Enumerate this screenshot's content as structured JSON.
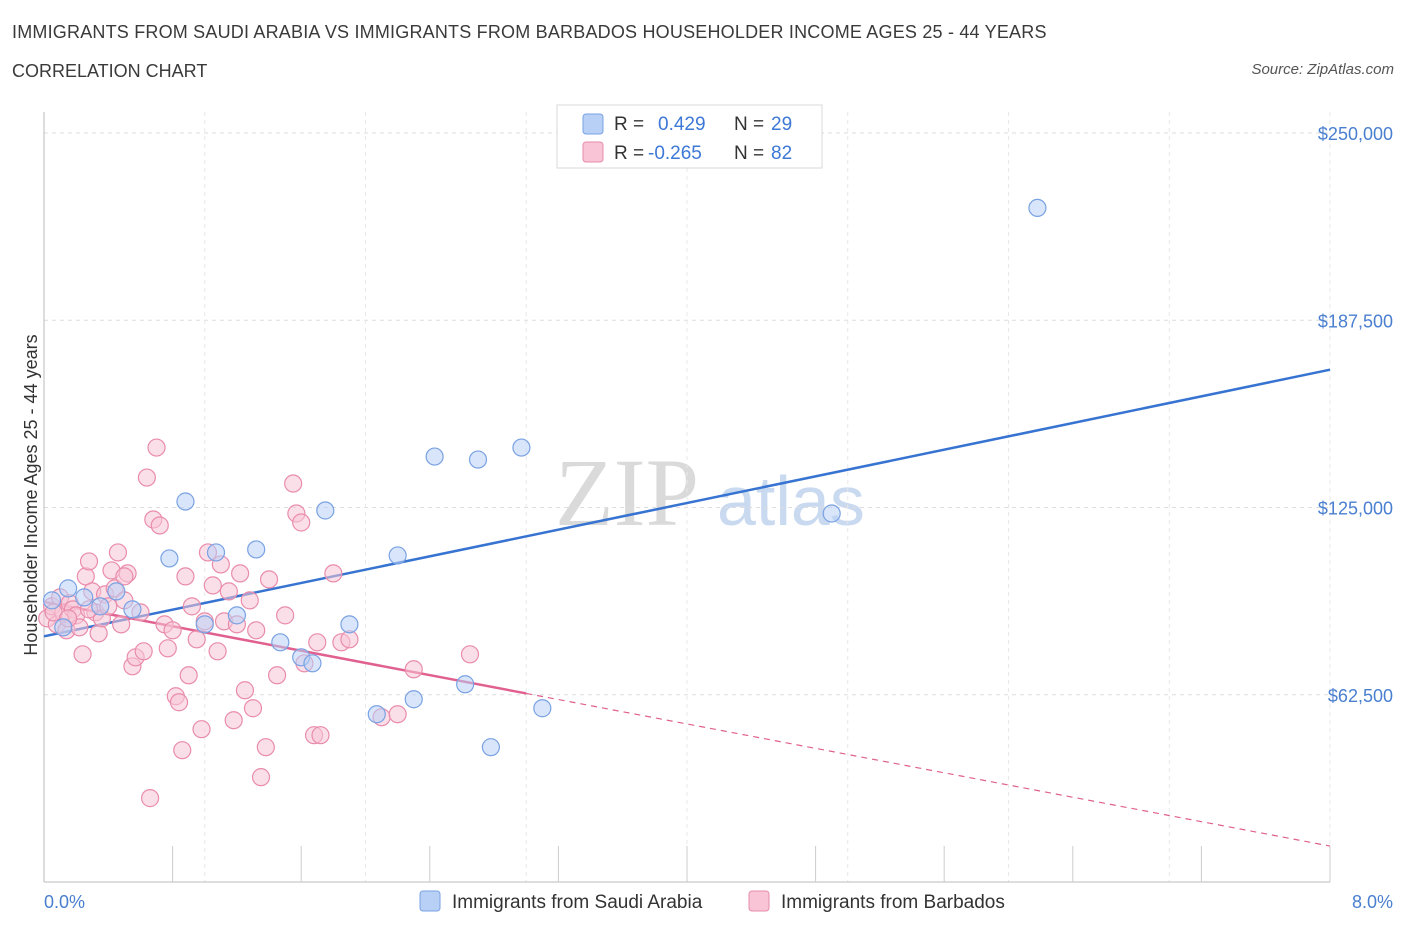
{
  "header": {
    "title": "IMMIGRANTS FROM SAUDI ARABIA VS IMMIGRANTS FROM BARBADOS HOUSEHOLDER INCOME AGES 25 - 44 YEARS",
    "subtitle": "CORRELATION CHART",
    "source": "Source: ZipAtlas.com"
  },
  "watermark": {
    "zip": "ZIP",
    "atlas": "atlas"
  },
  "legend": {
    "r_label": "R =",
    "n_label": "N =",
    "series1": {
      "r": "0.429",
      "n": "29"
    },
    "series2": {
      "r": "-0.265",
      "n": "82"
    }
  },
  "chart_data": {
    "type": "scatter",
    "title": "IMMIGRANTS FROM SAUDI ARABIA VS IMMIGRANTS FROM BARBADOS HOUSEHOLDER INCOME AGES 25 - 44 YEARS",
    "xlabel": "",
    "ylabel": "Householder Income Ages 25 - 44 years",
    "xlim": [
      0,
      8
    ],
    "ylim": [
      0,
      250000
    ],
    "x_tick_labels": [
      "0.0%",
      "8.0%"
    ],
    "y_ticks": [
      62500,
      125000,
      187500,
      250000
    ],
    "y_tick_labels": [
      "$62,500",
      "$125,000",
      "$187,500",
      "$250,000"
    ],
    "grid": true,
    "legend_position": "top-center",
    "colors": {
      "series1_fill": "#b8d0f5",
      "series1_stroke": "#7aa2e3",
      "series1_line": "#3773d0",
      "series2_fill": "#f8c4d6",
      "series2_stroke": "#e98cab",
      "series2_line": "#e0608f"
    },
    "series": [
      {
        "name": "Immigrants from Saudi Arabia",
        "r": 0.429,
        "n": 29,
        "trend": {
          "x0": 0.0,
          "y0": 82000,
          "x1": 8.0,
          "y1": 171000,
          "dashed_from": null
        },
        "points": [
          [
            0.05,
            94000
          ],
          [
            0.15,
            98000
          ],
          [
            0.25,
            95000
          ],
          [
            0.35,
            92000
          ],
          [
            0.45,
            97000
          ],
          [
            0.55,
            91000
          ],
          [
            0.78,
            108000
          ],
          [
            0.88,
            127000
          ],
          [
            1.0,
            86000
          ],
          [
            1.07,
            110000
          ],
          [
            1.2,
            89000
          ],
          [
            1.32,
            111000
          ],
          [
            1.47,
            80000
          ],
          [
            1.6,
            75000
          ],
          [
            1.67,
            73000
          ],
          [
            1.75,
            124000
          ],
          [
            1.9,
            86000
          ],
          [
            2.07,
            56000
          ],
          [
            2.2,
            109000
          ],
          [
            2.3,
            61000
          ],
          [
            2.43,
            142000
          ],
          [
            2.62,
            66000
          ],
          [
            2.7,
            141000
          ],
          [
            2.78,
            45000
          ],
          [
            2.97,
            145000
          ],
          [
            3.1,
            58000
          ],
          [
            4.9,
            123000
          ],
          [
            6.18,
            225000
          ],
          [
            0.12,
            85000
          ]
        ]
      },
      {
        "name": "Immigrants from Barbados",
        "r": -0.265,
        "n": 82,
        "trend": {
          "x0": 0.0,
          "y0": 93500,
          "x1": 8.0,
          "y1": 12000,
          "dashed_from": 3.0
        },
        "points": [
          [
            0.02,
            88000
          ],
          [
            0.05,
            92000
          ],
          [
            0.08,
            86000
          ],
          [
            0.1,
            95000
          ],
          [
            0.12,
            90000
          ],
          [
            0.14,
            84000
          ],
          [
            0.16,
            93000
          ],
          [
            0.18,
            91000
          ],
          [
            0.2,
            89000
          ],
          [
            0.22,
            85000
          ],
          [
            0.24,
            76000
          ],
          [
            0.26,
            102000
          ],
          [
            0.28,
            107000
          ],
          [
            0.3,
            97000
          ],
          [
            0.32,
            90000
          ],
          [
            0.34,
            83000
          ],
          [
            0.36,
            88000
          ],
          [
            0.38,
            96000
          ],
          [
            0.4,
            92000
          ],
          [
            0.42,
            104000
          ],
          [
            0.44,
            98000
          ],
          [
            0.46,
            110000
          ],
          [
            0.48,
            86000
          ],
          [
            0.5,
            94000
          ],
          [
            0.52,
            103000
          ],
          [
            0.55,
            72000
          ],
          [
            0.57,
            75000
          ],
          [
            0.6,
            90000
          ],
          [
            0.62,
            77000
          ],
          [
            0.64,
            135000
          ],
          [
            0.66,
            28000
          ],
          [
            0.68,
            121000
          ],
          [
            0.7,
            145000
          ],
          [
            0.72,
            119000
          ],
          [
            0.75,
            86000
          ],
          [
            0.77,
            78000
          ],
          [
            0.8,
            84000
          ],
          [
            0.82,
            62000
          ],
          [
            0.84,
            60000
          ],
          [
            0.86,
            44000
          ],
          [
            0.88,
            102000
          ],
          [
            0.9,
            69000
          ],
          [
            0.92,
            92000
          ],
          [
            0.95,
            81000
          ],
          [
            0.98,
            51000
          ],
          [
            1.0,
            87000
          ],
          [
            1.02,
            110000
          ],
          [
            1.05,
            99000
          ],
          [
            1.08,
            77000
          ],
          [
            1.1,
            106000
          ],
          [
            1.12,
            87000
          ],
          [
            1.15,
            97000
          ],
          [
            1.18,
            54000
          ],
          [
            1.2,
            86000
          ],
          [
            1.22,
            103000
          ],
          [
            1.25,
            64000
          ],
          [
            1.28,
            94000
          ],
          [
            1.3,
            58000
          ],
          [
            1.32,
            84000
          ],
          [
            1.35,
            35000
          ],
          [
            1.38,
            45000
          ],
          [
            1.4,
            101000
          ],
          [
            1.45,
            69000
          ],
          [
            1.5,
            89000
          ],
          [
            1.55,
            133000
          ],
          [
            1.57,
            123000
          ],
          [
            1.6,
            120000
          ],
          [
            1.62,
            73000
          ],
          [
            1.68,
            49000
          ],
          [
            1.7,
            80000
          ],
          [
            1.72,
            49000
          ],
          [
            1.8,
            103000
          ],
          [
            1.85,
            80000
          ],
          [
            1.9,
            81000
          ],
          [
            2.1,
            55000
          ],
          [
            2.2,
            56000
          ],
          [
            2.3,
            71000
          ],
          [
            2.65,
            76000
          ],
          [
            0.06,
            90000
          ],
          [
            0.15,
            88000
          ],
          [
            0.28,
            91000
          ],
          [
            0.5,
            102000
          ]
        ]
      }
    ]
  },
  "bottom_legend": {
    "item1": "Immigrants from Saudi Arabia",
    "item2": "Immigrants from Barbados"
  }
}
